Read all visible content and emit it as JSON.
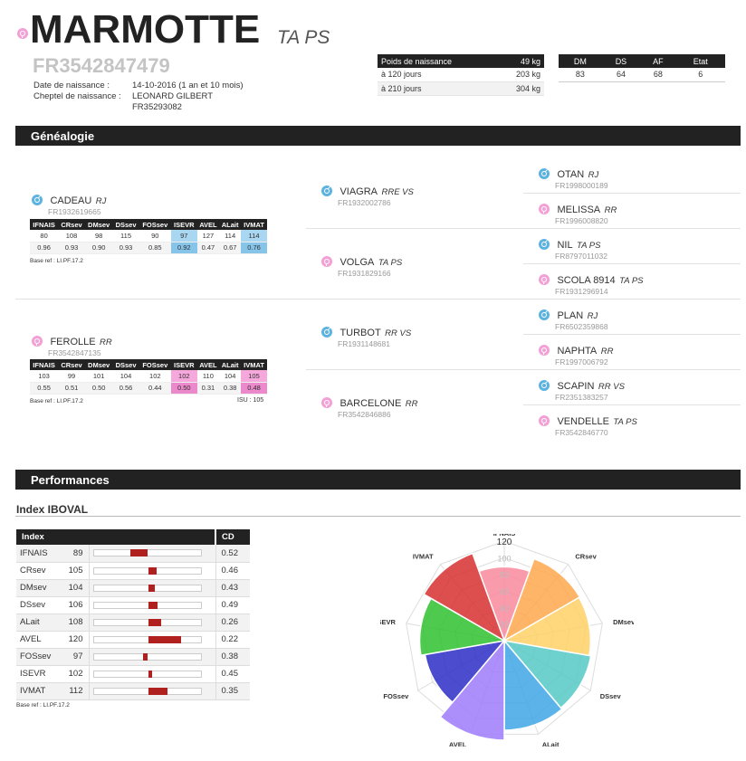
{
  "header": {
    "name": "MARMOTTE",
    "breed": "TA PS",
    "id": "FR3542847479",
    "birth_label": "Date de naissance :",
    "birth_value": "14-10-2016 (1 an et 10 mois)",
    "herd_label": "Cheptel de naissance :",
    "herd_value": "LEONARD GILBERT",
    "herd_code": "FR35293082"
  },
  "weights": {
    "title": "Poids de naissance",
    "title_value": "49 kg",
    "rows": [
      {
        "label": "à 120 jours",
        "value": "203 kg"
      },
      {
        "label": "à 210 jours",
        "value": "304 kg"
      }
    ]
  },
  "scores": {
    "headers": [
      "DM",
      "DS",
      "AF",
      "Etat"
    ],
    "values": [
      "83",
      "64",
      "68",
      "6"
    ]
  },
  "sections": {
    "genealogy": "Généalogie",
    "performances": "Performances",
    "iboval": "Index IBOVAL"
  },
  "parents": {
    "sire": {
      "name": "CADEAU",
      "breed": "RJ",
      "code": "FR1932619665"
    },
    "dam": {
      "name": "FEROLLE",
      "breed": "RR",
      "code": "FR3542847135"
    },
    "index_headers": [
      "IFNAIS",
      "CRsev",
      "DMsev",
      "DSsev",
      "FOSsev",
      "ISEVR",
      "AVEL",
      "ALait",
      "IVMAT"
    ],
    "sire_values": [
      "80",
      "108",
      "98",
      "115",
      "90",
      "97",
      "127",
      "114",
      "114"
    ],
    "sire_cd": [
      "0.96",
      "0.93",
      "0.90",
      "0.93",
      "0.85",
      "0.92",
      "0.47",
      "0.67",
      "0.76"
    ],
    "dam_values": [
      "103",
      "99",
      "101",
      "104",
      "102",
      "102",
      "110",
      "104",
      "105"
    ],
    "dam_cd": [
      "0.55",
      "0.51",
      "0.50",
      "0.56",
      "0.44",
      "0.50",
      "0.31",
      "0.38",
      "0.48"
    ],
    "base_ref": "Base ref : LI.PF.17.2",
    "isu": "ISU : 105"
  },
  "grandparents": [
    {
      "name": "VIAGRA",
      "breed": "RRE VS",
      "code": "FR1932002786",
      "sex": "m"
    },
    {
      "name": "VOLGA",
      "breed": "TA PS",
      "code": "FR1931829166",
      "sex": "f"
    },
    {
      "name": "TURBOT",
      "breed": "RR VS",
      "code": "FR1931148681",
      "sex": "m"
    },
    {
      "name": "BARCELONE",
      "breed": "RR",
      "code": "FR3542846886",
      "sex": "f"
    }
  ],
  "great_grandparents": [
    {
      "name": "OTAN",
      "breed": "RJ",
      "code": "FR1998000189",
      "sex": "m"
    },
    {
      "name": "MELISSA",
      "breed": "RR",
      "code": "FR1996008820",
      "sex": "f"
    },
    {
      "name": "NIL",
      "breed": "TA PS",
      "code": "FR8797011032",
      "sex": "m"
    },
    {
      "name": "SCOLA 8914",
      "breed": "TA PS",
      "code": "FR1931296914",
      "sex": "f"
    },
    {
      "name": "PLAN",
      "breed": "RJ",
      "code": "FR6502359868",
      "sex": "m"
    },
    {
      "name": "NAPHTA",
      "breed": "RR",
      "code": "FR1997006792",
      "sex": "f"
    },
    {
      "name": "SCAPIN",
      "breed": "RR VS",
      "code": "FR2351383257",
      "sex": "m"
    },
    {
      "name": "VENDELLE",
      "breed": "TA PS",
      "code": "FR3542846770",
      "sex": "f"
    }
  ],
  "iboval": {
    "col_index": "Index",
    "col_cd": "CD",
    "rows": [
      {
        "label": "IFNAIS",
        "value": 89,
        "cd": "0.52"
      },
      {
        "label": "CRsev",
        "value": 105,
        "cd": "0.46"
      },
      {
        "label": "DMsev",
        "value": 104,
        "cd": "0.43"
      },
      {
        "label": "DSsev",
        "value": 106,
        "cd": "0.49"
      },
      {
        "label": "ALait",
        "value": 108,
        "cd": "0.26"
      },
      {
        "label": "AVEL",
        "value": 120,
        "cd": "0.22"
      },
      {
        "label": "FOSsev",
        "value": 97,
        "cd": "0.38"
      },
      {
        "label": "ISEVR",
        "value": 102,
        "cd": "0.45"
      },
      {
        "label": "IVMAT",
        "value": 112,
        "cd": "0.35"
      }
    ],
    "base_ref": "Base ref : LI.PF.17.2"
  },
  "chart_data": {
    "type": "polar-area",
    "categories": [
      "IFNAIS",
      "CRsev",
      "DMsev",
      "DSsev",
      "ALait",
      "AVEL",
      "FOSsev",
      "ISEVR",
      "IVMAT"
    ],
    "values": [
      89,
      105,
      104,
      106,
      108,
      120,
      97,
      102,
      112
    ],
    "colors": [
      "#f98a9e",
      "#ffa84d",
      "#ffd065",
      "#55c9c5",
      "#3fa6e6",
      "#9f7bfb",
      "#2d2dc7",
      "#2fc22f",
      "#d72f30"
    ],
    "scale_max": 120,
    "ticks": [
      "20",
      "40",
      "60",
      "80",
      "100",
      "120"
    ]
  }
}
